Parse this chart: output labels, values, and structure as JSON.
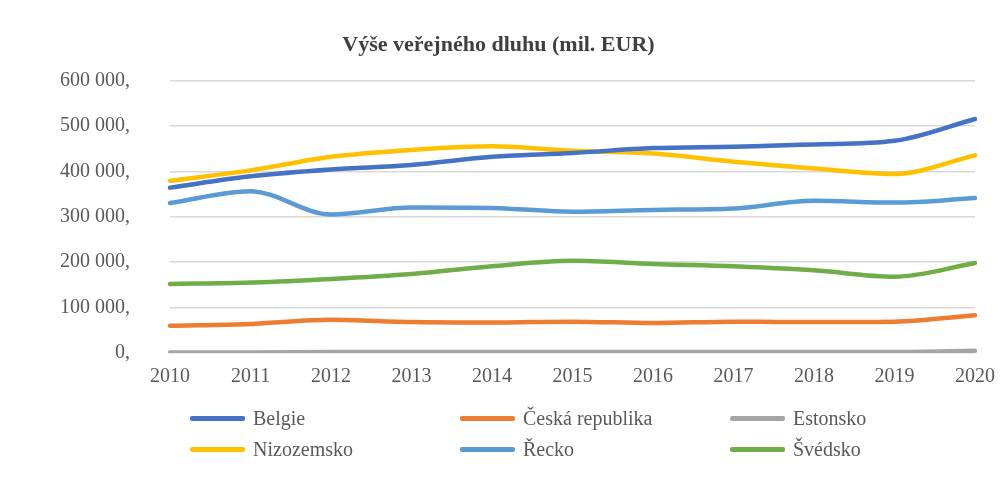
{
  "chart_data": {
    "type": "line",
    "title": "Výše veřejného dluhu (mil. EUR)",
    "categories": [
      "2010",
      "2011",
      "2012",
      "2013",
      "2014",
      "2015",
      "2016",
      "2017",
      "2018",
      "2019",
      "2020"
    ],
    "series": [
      {
        "name": "Belgie",
        "color": "#4472c4",
        "values": [
          364000,
          389000,
          404000,
          414000,
          432000,
          440000,
          451000,
          454000,
          459000,
          467000,
          515000
        ]
      },
      {
        "name": "Česká republika",
        "color": "#ed7d31",
        "values": [
          60000,
          64000,
          73000,
          68000,
          67000,
          69000,
          66000,
          69000,
          68000,
          69000,
          83000
        ]
      },
      {
        "name": "Estonsko",
        "color": "#a5a5a5",
        "values": [
          1000,
          1000,
          2000,
          2000,
          2000,
          2000,
          2000,
          2000,
          2000,
          2000,
          5000
        ]
      },
      {
        "name": "Nizozemsko",
        "color": "#ffc000",
        "values": [
          379000,
          402000,
          432000,
          447000,
          455000,
          445000,
          439000,
          421000,
          406000,
          394000,
          435000
        ]
      },
      {
        "name": "Řecko",
        "color": "#5b9bd5",
        "values": [
          330000,
          356000,
          305000,
          320000,
          319000,
          311000,
          315000,
          318000,
          335000,
          331000,
          341000
        ]
      },
      {
        "name": "Švédsko",
        "color": "#70ad47",
        "values": [
          152000,
          155000,
          163000,
          174000,
          191000,
          203000,
          196000,
          191000,
          182000,
          168000,
          198000
        ]
      }
    ],
    "ylim": [
      0,
      600000
    ],
    "yticks": [
      {
        "value": 0,
        "label": "0,"
      },
      {
        "value": 100000,
        "label": "100 000,"
      },
      {
        "value": 200000,
        "label": "200 000,"
      },
      {
        "value": 300000,
        "label": "300 000,"
      },
      {
        "value": 400000,
        "label": "400 000,"
      },
      {
        "value": 500000,
        "label": "500 000,"
      },
      {
        "value": 600000,
        "label": "600 000,"
      }
    ],
    "grid": "y",
    "legend": "bottom",
    "marker": "none",
    "line_style": "solid"
  }
}
